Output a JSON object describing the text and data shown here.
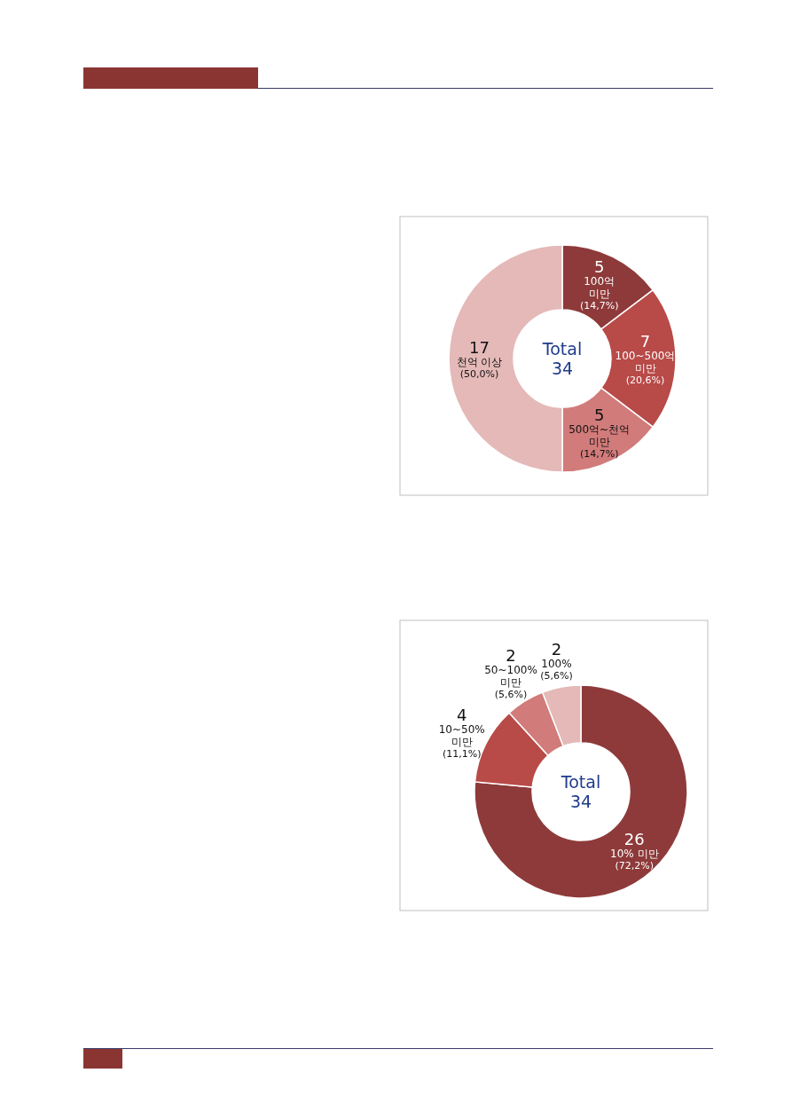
{
  "chart_data": [
    {
      "type": "donut",
      "categories": [
        "100억 미만",
        "100~500억 미만",
        "500억~천억 미만",
        "천억 이상"
      ],
      "values": [
        5,
        7,
        5,
        17
      ],
      "colors": [
        "#8e3a3a",
        "#b84a48",
        "#d17b7a",
        "#e4b9b8"
      ],
      "data_labels": true,
      "annotations": [
        {
          "text": "(14,7%)",
          "x": "100억 미만"
        },
        {
          "text": "(20,6%)",
          "x": "100~500억 미만"
        },
        {
          "text": "(14,7%)",
          "x": "500억~천억 미만"
        },
        {
          "text": "(50,0%)",
          "x": "천억 이상"
        },
        "Total",
        "34"
      ]
    },
    {
      "type": "donut",
      "categories": [
        "10% 미만",
        "10~50% 미만",
        "50~100% 미만",
        "100%"
      ],
      "values": [
        26,
        4,
        2,
        2
      ],
      "colors": [
        "#8e3a3a",
        "#b84a48",
        "#d17b7a",
        "#e4b9b8"
      ],
      "data_labels": true,
      "annotations": [
        {
          "text": "(72,2%)",
          "x": "10% 미만"
        },
        {
          "text": "(11,1%)",
          "x": "10~50% 미만"
        },
        {
          "text": "(5,6%)",
          "x": "50~100% 미만"
        },
        {
          "text": "(5,6%)",
          "x": "100%"
        },
        "Total",
        "34"
      ]
    }
  ]
}
